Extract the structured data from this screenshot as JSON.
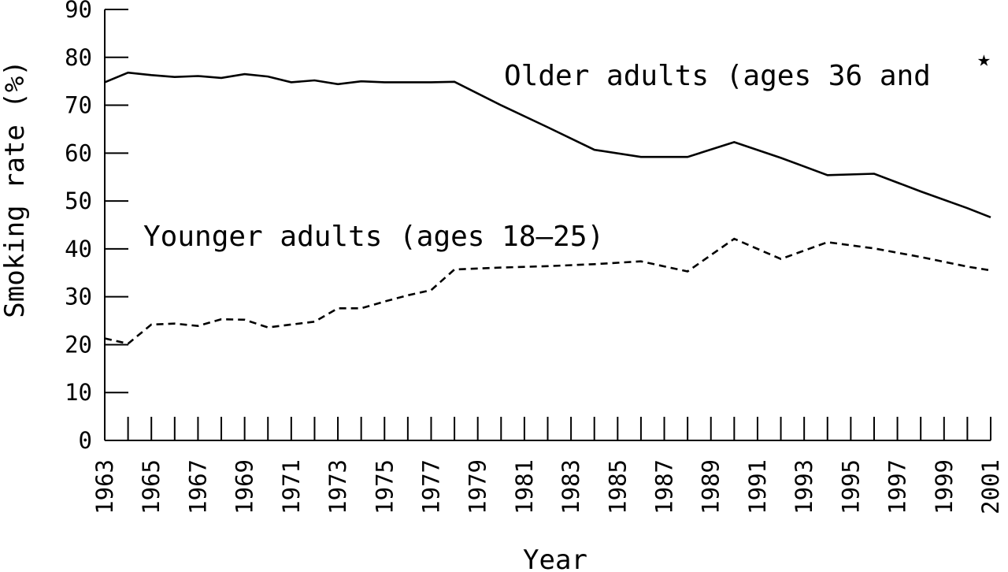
{
  "chart_data": {
    "type": "line",
    "title": "",
    "xlabel": "Year",
    "ylabel": "Smoking rate (%)",
    "ylim": [
      0,
      90
    ],
    "xlim": [
      1963,
      2001
    ],
    "y_ticks": [
      0,
      10,
      20,
      30,
      40,
      50,
      60,
      70,
      80,
      90
    ],
    "x_tick_labels": [
      "1963",
      "1965",
      "1967",
      "1969",
      "1971",
      "1973",
      "1975",
      "1977",
      "1979",
      "1981",
      "1983",
      "1985",
      "1987",
      "1989",
      "1991",
      "1993",
      "1995",
      "1997",
      "1999",
      "2001"
    ],
    "series": [
      {
        "name": "Older adults (ages 36 and",
        "style": "solid",
        "x": [
          1963,
          1964,
          1965,
          1966,
          1967,
          1968,
          1969,
          1970,
          1971,
          1972,
          1973,
          1974,
          1975,
          1976,
          1977,
          1978,
          1980,
          1982,
          1984,
          1986,
          1988,
          1990,
          1992,
          1994,
          1996,
          1998,
          2000,
          2001
        ],
        "y": [
          74.8,
          76.8,
          76.3,
          75.9,
          76.1,
          75.7,
          76.5,
          76.0,
          74.8,
          75.2,
          74.4,
          75.0,
          74.8,
          74.8,
          74.8,
          74.9,
          70.0,
          65.4,
          60.7,
          59.2,
          59.2,
          62.3,
          59.0,
          55.4,
          55.7,
          52.0,
          48.5,
          46.6
        ]
      },
      {
        "name": "Younger adults (ages 18–25)",
        "style": "dashed",
        "x": [
          1963,
          1964,
          1965,
          1966,
          1967,
          1968,
          1969,
          1970,
          1971,
          1972,
          1973,
          1974,
          1975,
          1976,
          1977,
          1978,
          1980,
          1982,
          1984,
          1986,
          1988,
          1990,
          1992,
          1994,
          1996,
          1998,
          2000,
          2001
        ],
        "y": [
          21.3,
          20.2,
          24.2,
          24.4,
          23.9,
          25.3,
          25.2,
          23.6,
          24.2,
          24.8,
          27.6,
          27.6,
          29.0,
          30.3,
          31.4,
          35.7,
          36.1,
          36.4,
          36.8,
          37.4,
          35.3,
          42.1,
          37.9,
          41.4,
          40.1,
          38.3,
          36.3,
          35.5
        ]
      }
    ]
  }
}
